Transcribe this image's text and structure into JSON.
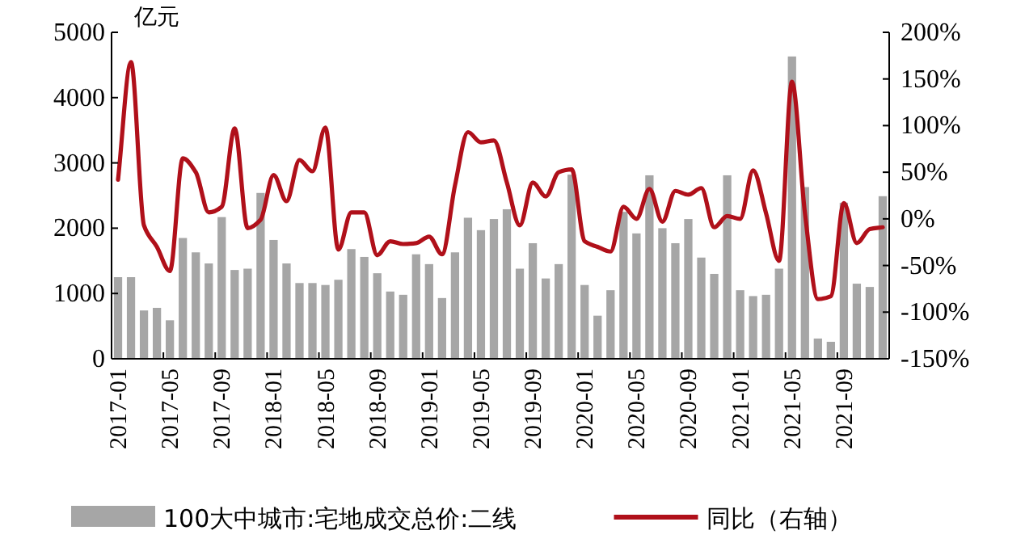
{
  "chart_data": {
    "type": "bar",
    "ylabel": "亿元",
    "legend": "bottom",
    "grid": false,
    "categories": [
      "2017-01",
      null,
      null,
      null,
      "2017-05",
      null,
      null,
      null,
      "2017-09",
      null,
      null,
      null,
      "2018-01",
      null,
      null,
      null,
      "2018-05",
      null,
      null,
      null,
      "2018-09",
      null,
      null,
      null,
      "2019-01",
      null,
      null,
      null,
      "2019-05",
      null,
      null,
      null,
      "2019-09",
      null,
      null,
      null,
      "2020-01",
      null,
      null,
      null,
      "2020-05",
      null,
      null,
      null,
      "2020-09",
      null,
      null,
      null,
      "2021-01",
      null,
      null,
      null,
      "2021-05",
      null,
      null,
      null,
      "2021-09",
      null,
      null,
      null
    ],
    "series": [
      {
        "name": "100大中城市:宅地成交总价:二线",
        "color": "#a6a6a6",
        "values": [
          1250,
          1250,
          740,
          780,
          590,
          1850,
          1630,
          1460,
          2170,
          1360,
          1380,
          2540,
          1820,
          1460,
          1160,
          1160,
          1130,
          1210,
          1680,
          1560,
          1310,
          1030,
          980,
          1600,
          1450,
          930,
          1630,
          2160,
          1970,
          2140,
          2290,
          1380,
          1770,
          1230,
          1450,
          2820,
          1130,
          660,
          1050,
          2250,
          1920,
          2810,
          2000,
          1770,
          2140,
          1550,
          1300,
          2810,
          1050,
          960,
          980,
          1380,
          4630,
          2630,
          310,
          260,
          2390,
          1150,
          1100,
          2490
        ]
      },
      {
        "name": "同比（右轴）",
        "type": "line",
        "axis": "y2",
        "color": "#b0101a",
        "values": [
          42,
          168,
          -7,
          -30,
          -56,
          65,
          50,
          7,
          13,
          97,
          -10,
          -1,
          47,
          19,
          63,
          51,
          98,
          -33,
          7,
          7,
          -39,
          -24,
          -27,
          -26,
          -19,
          -38,
          36,
          93,
          82,
          84,
          39,
          -7,
          39,
          24,
          50,
          53,
          -24,
          -30,
          -35,
          13,
          0,
          32,
          -3,
          30,
          26,
          33,
          -9,
          3,
          0,
          52,
          6,
          -45,
          147,
          6,
          -86,
          -83,
          17,
          -26,
          -11,
          -9
        ]
      }
    ],
    "ylim": [
      0,
      5000
    ],
    "yticks": [
      0,
      1000,
      2000,
      3000,
      4000,
      5000
    ],
    "y2lim": [
      -150,
      200
    ],
    "y2ticks": [
      {
        "value": -150,
        "label": "-150%"
      },
      {
        "value": -100,
        "label": "-100%"
      },
      {
        "value": -50,
        "label": "-50%"
      },
      {
        "value": 0,
        "label": "0%"
      },
      {
        "value": 50,
        "label": "50%"
      },
      {
        "value": 100,
        "label": "100%"
      },
      {
        "value": 150,
        "label": "150%"
      },
      {
        "value": 200,
        "label": "200%"
      }
    ]
  }
}
